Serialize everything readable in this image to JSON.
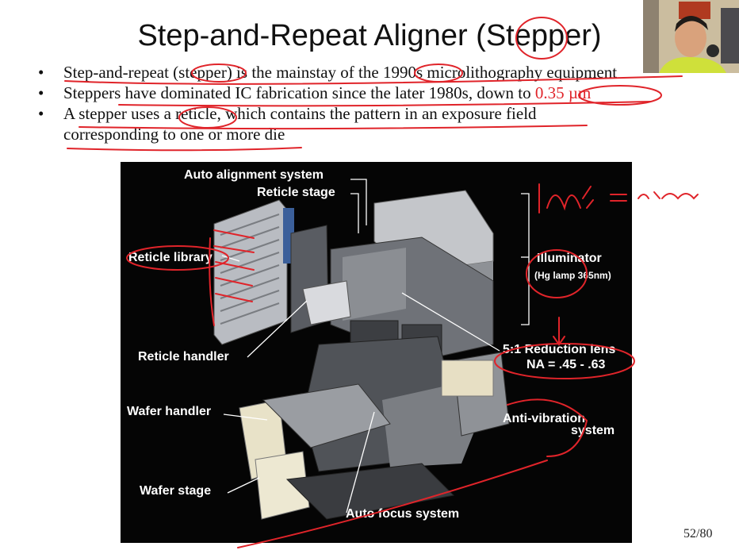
{
  "slide": {
    "title": "Step-and-Repeat Aligner (Stepper)",
    "bullets": [
      {
        "text": "Step-and-repeat (stepper) is the mainstay of the 1990s microlithography equipment"
      },
      {
        "text_before": "Steppers have dominated IC fabrication since the later 1980s, down to ",
        "highlight": "0.35 µm"
      },
      {
        "line1": "A stepper uses a reticle, which contains the pattern in an exposure field",
        "line2": "corresponding to one or more die"
      }
    ],
    "page_number": "52/80"
  },
  "figure": {
    "labels": {
      "auto_alignment": "Auto alignment system",
      "reticle_stage": "Reticle stage",
      "reticle_library": "Reticle library",
      "illuminator": "Illuminator",
      "illuminator_sub": "(Hg lamp 365nm)",
      "reduction_lens": "5:1  Reduction lens",
      "na": "NA = .45 - .63",
      "reticle_handler": "Reticle handler",
      "wafer_handler": "Wafer handler",
      "anti_vibration_1": "Anti-vibration",
      "anti_vibration_2": "system",
      "wafer_stage": "Wafer stage",
      "auto_focus": "Auto focus system"
    }
  },
  "annotations": {
    "handwritten_1": "1µ/s = a 2µm"
  },
  "colors": {
    "ink": "#e0242a",
    "figure_bg": "#050505"
  }
}
